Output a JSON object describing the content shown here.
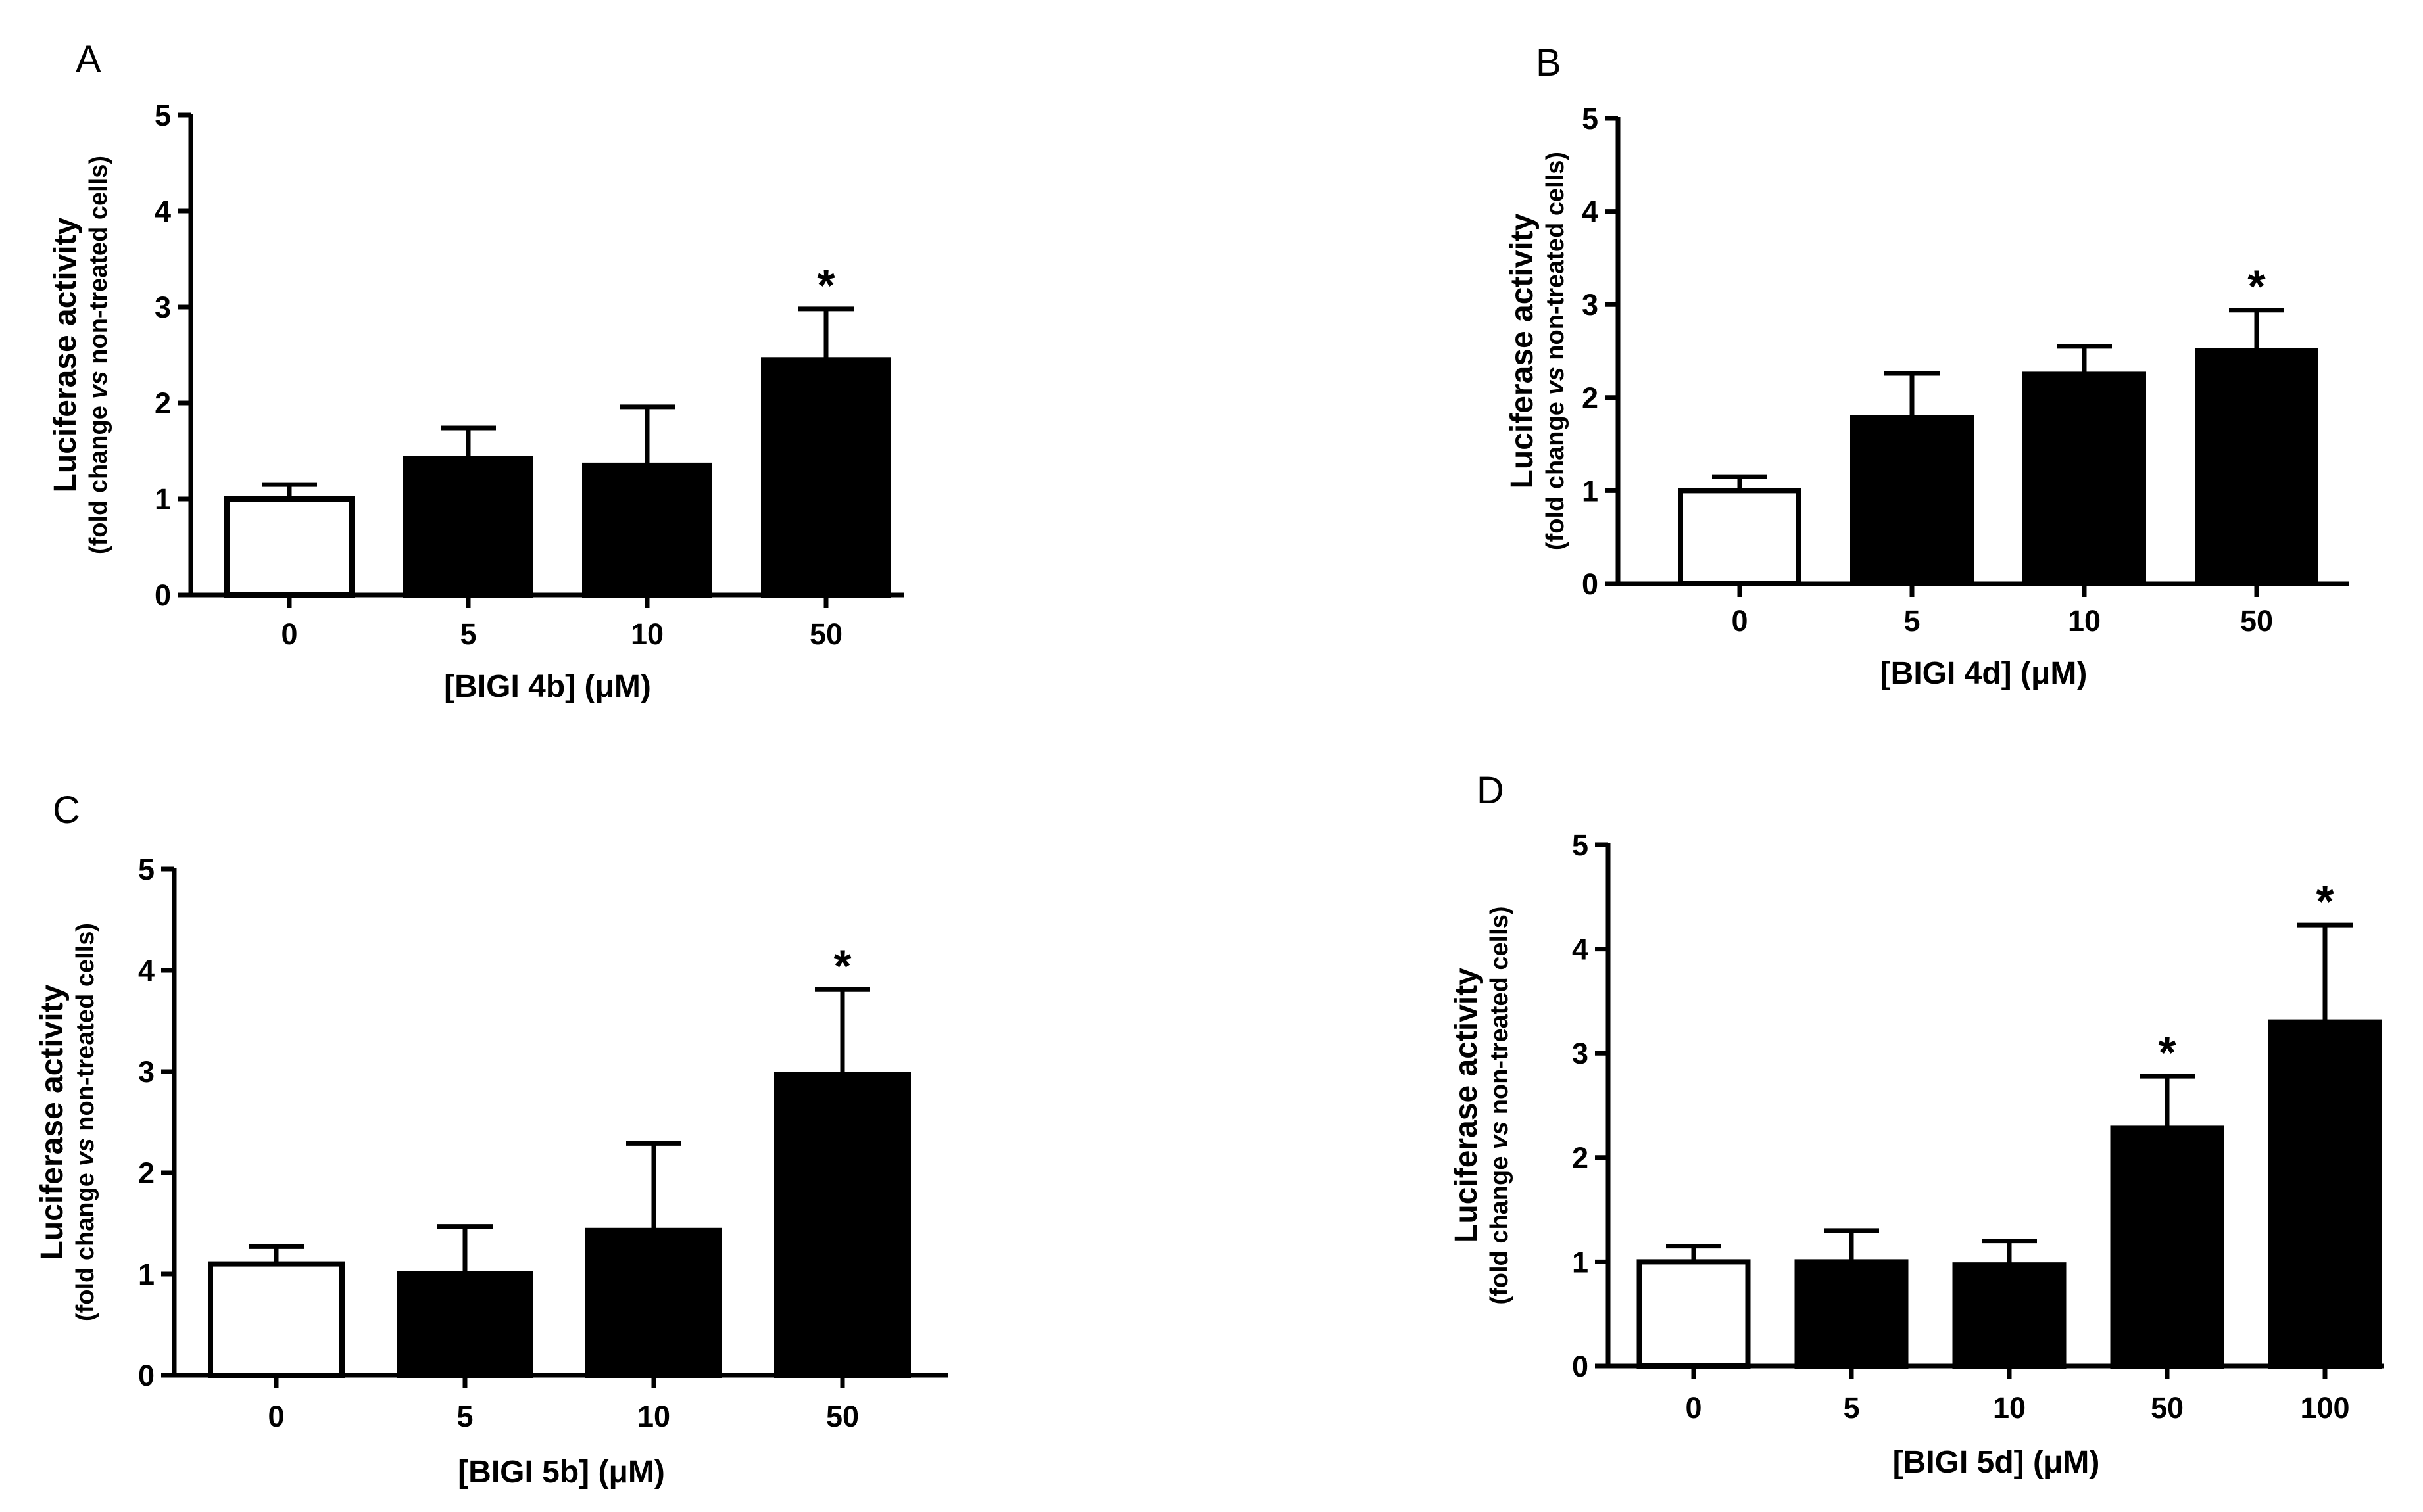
{
  "chart_data": [
    {
      "panel": "A",
      "type": "bar",
      "categories": [
        "0",
        "5",
        "10",
        "50"
      ],
      "values": [
        1.0,
        1.42,
        1.35,
        2.45
      ],
      "errors": [
        0.15,
        0.32,
        0.61,
        0.53
      ],
      "fills": [
        "#ffffff",
        "#000000",
        "#000000",
        "#000000"
      ],
      "significance": [
        "",
        "",
        "",
        "*"
      ],
      "xlabel": "[BIGI 4b] (μM)",
      "ylabel": "Luciferase activity",
      "ylabel_sub_pre": "(fold change ",
      "ylabel_sub_italic": "vs",
      "ylabel_sub_post": " non-treated cells)",
      "ylim": [
        0,
        5
      ],
      "yticks": [
        0,
        1,
        2,
        3,
        4,
        5
      ]
    },
    {
      "panel": "B",
      "type": "bar",
      "categories": [
        "0",
        "5",
        "10",
        "50"
      ],
      "values": [
        1.0,
        1.78,
        2.25,
        2.5
      ],
      "errors": [
        0.15,
        0.48,
        0.3,
        0.44
      ],
      "fills": [
        "#ffffff",
        "#000000",
        "#000000",
        "#000000"
      ],
      "significance": [
        "",
        "",
        "",
        "*"
      ],
      "xlabel": "[BIGI 4d] (μM)",
      "ylabel": "Luciferase activity",
      "ylabel_sub_pre": "(fold change ",
      "ylabel_sub_italic": "vs",
      "ylabel_sub_post": " non-treated cells)",
      "ylim": [
        0,
        5
      ],
      "yticks": [
        0,
        1,
        2,
        3,
        4,
        5
      ]
    },
    {
      "panel": "C",
      "type": "bar",
      "categories": [
        "0",
        "5",
        "10",
        "50"
      ],
      "values": [
        1.1,
        1.0,
        1.43,
        2.97
      ],
      "errors": [
        0.17,
        0.47,
        0.86,
        0.84
      ],
      "fills": [
        "#ffffff",
        "#000000",
        "#000000",
        "#000000"
      ],
      "significance": [
        "",
        "",
        "",
        "*"
      ],
      "xlabel": "[BIGI 5b] (μM)",
      "ylabel": "Luciferase activity",
      "ylabel_sub_pre": "(fold change ",
      "ylabel_sub_italic": "vs",
      "ylabel_sub_post": " non-treated cells)",
      "ylim": [
        0,
        5
      ],
      "yticks": [
        0,
        1,
        2,
        3,
        4,
        5
      ]
    },
    {
      "panel": "D",
      "type": "bar",
      "categories": [
        "0",
        "5",
        "10",
        "50",
        "100"
      ],
      "values": [
        1.0,
        1.0,
        0.97,
        2.28,
        3.3
      ],
      "errors": [
        0.15,
        0.3,
        0.23,
        0.5,
        0.93
      ],
      "fills": [
        "#ffffff",
        "#000000",
        "#000000",
        "#000000",
        "#000000"
      ],
      "significance": [
        "",
        "",
        "",
        "*",
        "*"
      ],
      "xlabel": "[BIGI 5d] (μM)",
      "ylabel": "Luciferase activity",
      "ylabel_sub_pre": "(fold change ",
      "ylabel_sub_italic": "vs",
      "ylabel_sub_post": " non-treated cells)",
      "ylim": [
        0,
        5
      ],
      "yticks": [
        0,
        1,
        2,
        3,
        4,
        5
      ]
    }
  ]
}
